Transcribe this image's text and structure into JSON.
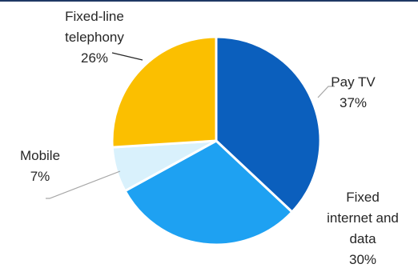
{
  "chart_data": {
    "type": "pie",
    "categories": [
      "Pay TV",
      "Fixed internet and data",
      "Mobile",
      "Fixed-line telephony"
    ],
    "values": [
      37,
      30,
      7,
      26
    ],
    "value_labels": [
      "37%",
      "30%",
      "7%",
      "26%"
    ],
    "label_lines": [
      [
        "Pay TV",
        "37%"
      ],
      [
        "Fixed",
        "internet and",
        "data",
        "30%"
      ],
      [
        "Mobile",
        "7%"
      ],
      [
        "Fixed-line",
        "telephony",
        "26%"
      ]
    ],
    "colors": [
      "#0b5fbd",
      "#1ea1f2",
      "#d9f1fc",
      "#fbbf00"
    ],
    "start_angle_deg": 0,
    "direction": "clockwise",
    "legend": "none",
    "title": ""
  }
}
